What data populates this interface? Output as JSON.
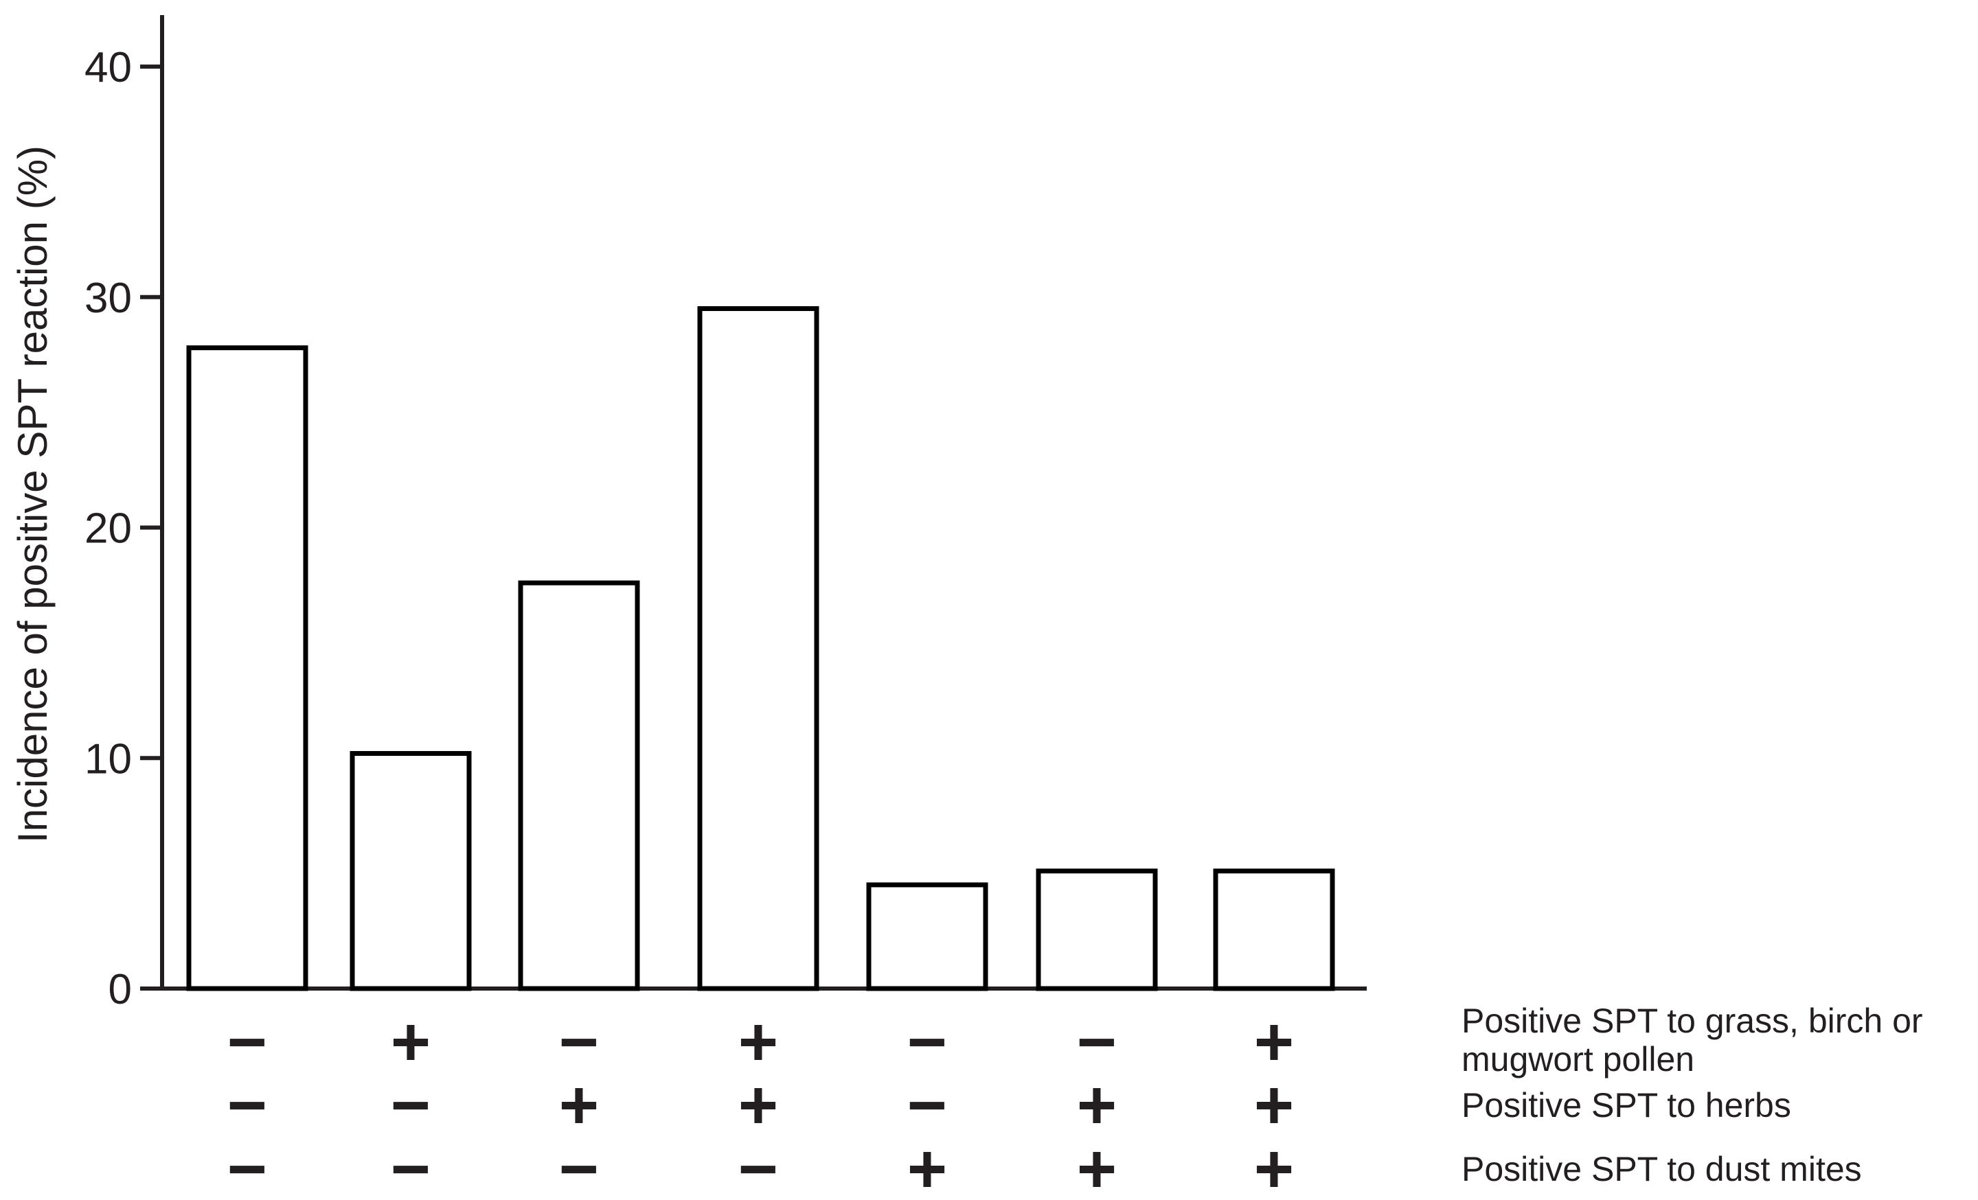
{
  "chart_data": {
    "type": "bar",
    "title": "",
    "ylabel": "Incidence of positive SPT reaction (%)",
    "xlabel": "",
    "ylim": [
      0,
      40
    ],
    "yticks": [
      "0",
      "10",
      "20",
      "30",
      "40"
    ],
    "grid": false,
    "values": [
      27.8,
      10.2,
      17.6,
      29.5,
      4.5,
      5.1,
      5.1
    ],
    "condition_rows": [
      {
        "label_lines": [
          "Positive SPT to grass, birch or",
          "mugwort pollen"
        ],
        "signs": [
          "−",
          "+",
          "−",
          "+",
          "−",
          "−",
          "+"
        ]
      },
      {
        "label_lines": [
          "Positive SPT to herbs"
        ],
        "signs": [
          "−",
          "−",
          "+",
          "+",
          "−",
          "+",
          "+"
        ]
      },
      {
        "label_lines": [
          "Positive SPT to dust mites"
        ],
        "signs": [
          "−",
          "−",
          "−",
          "−",
          "+",
          "+",
          "+"
        ]
      }
    ]
  }
}
